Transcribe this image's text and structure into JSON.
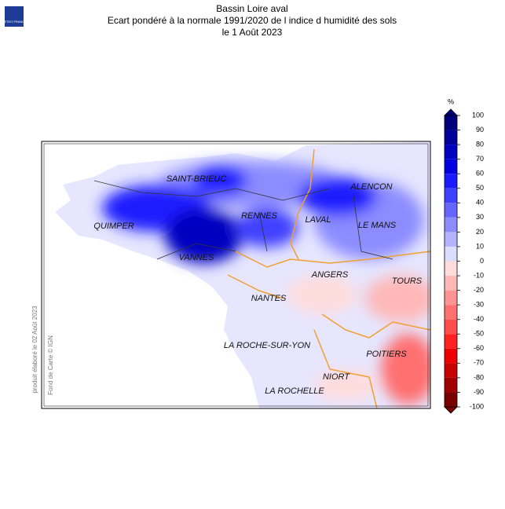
{
  "header": {
    "title": "Bassin Loire aval",
    "subtitle": "Ecart pondéré à la normale 1991/2020 de l indice d humidité des sols",
    "date": "le 1 Août 2023"
  },
  "logo": {
    "text": "METEO FRANCE"
  },
  "side_notes": {
    "produced": "produit élaboré le 02 Août 2023",
    "credit": "Fond de Carte © IGN"
  },
  "cities": [
    "SAINT-BRIEUC",
    "ALENCON",
    "QUIMPER",
    "RENNES",
    "LAVAL",
    "LE MANS",
    "VANNES",
    "ANGERS",
    "TOURS",
    "NANTES",
    "LA ROCHE-SUR-YON",
    "POITIERS",
    "NIORT",
    "LA ROCHELLE"
  ],
  "colorbar": {
    "unit": "%",
    "ticks": [
      100,
      90,
      80,
      70,
      60,
      50,
      40,
      30,
      20,
      10,
      0,
      -10,
      -20,
      -30,
      -40,
      -50,
      -60,
      -70,
      -80,
      -90,
      -100
    ],
    "colors": [
      "#00007a",
      "#00009a",
      "#0000c0",
      "#0000e0",
      "#1a1aff",
      "#4040ff",
      "#6666ff",
      "#8c8cff",
      "#b3b3ff",
      "#dcdcff",
      "#ffdcdc",
      "#ffb8b8",
      "#ff9494",
      "#ff7070",
      "#ff4c4c",
      "#ff2020",
      "#ee0000",
      "#c80000",
      "#a00000",
      "#780000"
    ]
  }
}
